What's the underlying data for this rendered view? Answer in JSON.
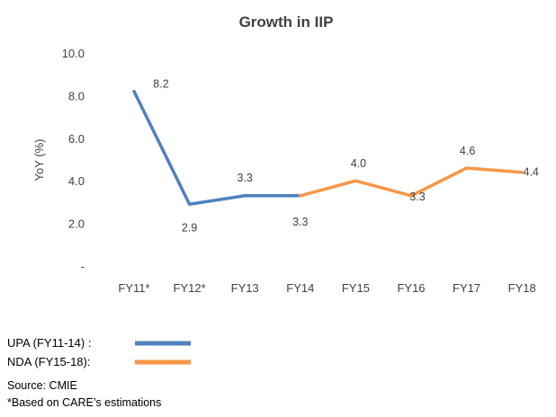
{
  "chart_data": {
    "type": "line",
    "title": "Growth in IIP",
    "xlabel": "",
    "ylabel": "YoY (%)",
    "categories": [
      "FY11*",
      "FY12*",
      "FY13",
      "FY14",
      "FY15",
      "FY16",
      "FY17",
      "FY18"
    ],
    "values": [
      8.2,
      2.9,
      3.3,
      3.3,
      4.0,
      3.3,
      4.6,
      4.4
    ],
    "data_labels": [
      "8.2",
      "2.9",
      "3.3",
      "3.3",
      "4.0",
      "3.3",
      "4.6",
      "4.4"
    ],
    "series": [
      {
        "name": "UPA (FY11-14) :",
        "start": 0,
        "end": 3,
        "color": "#4f81bd"
      },
      {
        "name": "NDA (FY15-18):",
        "start": 3,
        "end": 7,
        "color": "#f79646"
      }
    ],
    "yticks": [
      "-",
      "2.0",
      "4.0",
      "6.0",
      "8.0",
      "10.0"
    ],
    "ylim": [
      0,
      10
    ],
    "grid": false,
    "legend": "bottom-left"
  },
  "notes": {
    "source": "Source: CMIE",
    "footnote": "*Based on CARE’s estimations"
  }
}
